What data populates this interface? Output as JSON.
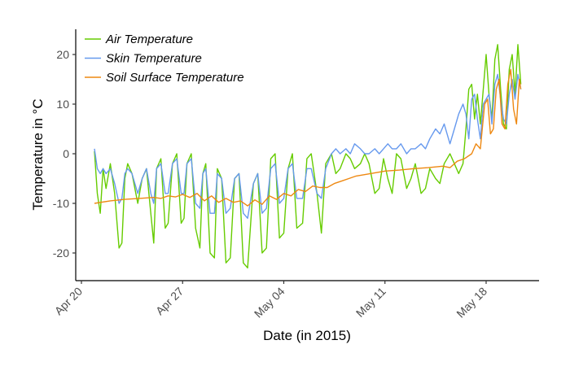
{
  "chart_data": {
    "type": "line",
    "title": "",
    "xlabel": "Date (in 2015)",
    "ylabel": "Temperature  in °C",
    "grid": false,
    "legend_position": "top-left",
    "x_unit": "days since Apr 20, 2015",
    "xlim": [
      -0.5,
      40.5
    ],
    "ylim": [
      -26,
      25
    ],
    "x_ticks": [
      {
        "value": 0,
        "label": "Apr 20"
      },
      {
        "value": 7,
        "label": "Apr 27"
      },
      {
        "value": 14,
        "label": "May 04"
      },
      {
        "value": 21,
        "label": "May 11"
      },
      {
        "value": 28,
        "label": "May 18"
      }
    ],
    "y_ticks": [
      {
        "value": -20,
        "label": "-20"
      },
      {
        "value": -10,
        "label": "-10"
      },
      {
        "value": 0,
        "label": "0"
      },
      {
        "value": 10,
        "label": "10"
      },
      {
        "value": 20,
        "label": "20"
      }
    ],
    "series": [
      {
        "name": "Air Temperature",
        "color": "#66cc00",
        "x": [
          0.9,
          1.1,
          1.3,
          1.5,
          1.7,
          2.0,
          2.3,
          2.6,
          2.8,
          3.0,
          3.2,
          3.5,
          3.9,
          4.2,
          4.5,
          4.8,
          5.0,
          5.2,
          5.5,
          5.8,
          6.0,
          6.3,
          6.6,
          6.9,
          7.1,
          7.3,
          7.6,
          7.9,
          8.2,
          8.4,
          8.6,
          8.9,
          9.2,
          9.4,
          9.7,
          10.0,
          10.3,
          10.6,
          10.9,
          11.2,
          11.5,
          11.9,
          12.2,
          12.5,
          12.8,
          13.1,
          13.4,
          13.7,
          14.0,
          14.3,
          14.6,
          14.9,
          15.3,
          15.6,
          15.9,
          16.3,
          16.6,
          16.9,
          17.3,
          17.6,
          17.9,
          18.3,
          18.6,
          18.9,
          19.3,
          19.6,
          19.9,
          20.3,
          20.6,
          20.9,
          21.2,
          21.5,
          21.8,
          22.1,
          22.5,
          22.8,
          23.1,
          23.5,
          23.8,
          24.1,
          24.5,
          24.8,
          25.1,
          25.5,
          25.8,
          26.1,
          26.4,
          26.6,
          26.8,
          27.0,
          27.2,
          27.4,
          27.6,
          27.8,
          28.0,
          28.2,
          28.4,
          28.6,
          28.8,
          29.0,
          29.2,
          29.4,
          29.6,
          29.8,
          30.0,
          30.2,
          30.4
        ],
        "values": [
          0.5,
          -8,
          -12,
          -3,
          -7,
          -2,
          -8,
          -19,
          -18,
          -5,
          -2,
          -4,
          -10,
          -5,
          -3,
          -12,
          -18,
          -3,
          -1,
          -15,
          -14,
          -2,
          0,
          -14,
          -13,
          -2,
          0,
          -15,
          -19,
          -4,
          -2,
          -20,
          -21,
          -3,
          -5,
          -22,
          -21,
          -5,
          -4,
          -22,
          -23,
          -6,
          -4,
          -20,
          -19,
          -1,
          0,
          -17,
          -16,
          -3,
          0,
          -15,
          -14,
          -1,
          0,
          -8,
          -16,
          -2,
          0,
          -4,
          -3,
          0,
          -1,
          -3,
          -2,
          0,
          -2,
          -8,
          -7,
          -1,
          -5,
          -8,
          0,
          -1,
          -7,
          -5,
          -2,
          -8,
          -7,
          -3,
          -5,
          -6,
          -2,
          0,
          -2,
          -4,
          -2,
          5,
          13,
          14,
          7,
          12,
          6,
          13,
          20,
          12,
          7,
          19,
          22,
          13,
          6,
          5,
          17,
          20,
          12,
          22,
          14
        ]
      },
      {
        "name": "Skin Temperature",
        "color": "#6699ee",
        "x": [
          0.9,
          1.1,
          1.3,
          1.5,
          1.7,
          2.0,
          2.3,
          2.6,
          2.8,
          3.0,
          3.2,
          3.5,
          3.9,
          4.2,
          4.5,
          4.8,
          5.0,
          5.2,
          5.5,
          5.8,
          6.0,
          6.3,
          6.6,
          6.9,
          7.1,
          7.3,
          7.6,
          7.9,
          8.2,
          8.4,
          8.6,
          8.9,
          9.2,
          9.4,
          9.7,
          10.0,
          10.3,
          10.6,
          10.9,
          11.2,
          11.5,
          11.9,
          12.2,
          12.5,
          12.8,
          13.1,
          13.4,
          13.7,
          14.0,
          14.3,
          14.6,
          14.9,
          15.3,
          15.6,
          15.9,
          16.3,
          16.6,
          16.9,
          17.3,
          17.6,
          17.9,
          18.3,
          18.6,
          18.9,
          19.3,
          19.6,
          19.9,
          20.3,
          20.6,
          20.9,
          21.2,
          21.5,
          21.8,
          22.1,
          22.5,
          22.8,
          23.1,
          23.5,
          23.8,
          24.1,
          24.5,
          24.8,
          25.1,
          25.5,
          25.8,
          26.1,
          26.4,
          26.6,
          26.8,
          27.0,
          27.2,
          27.4,
          27.6,
          27.8,
          28.0,
          28.2,
          28.4,
          28.6,
          28.8,
          29.0,
          29.2,
          29.4,
          29.6,
          29.8,
          30.0,
          30.2,
          30.4
        ],
        "values": [
          1,
          -3,
          -4,
          -3,
          -4,
          -3,
          -6,
          -10,
          -9,
          -4,
          -3,
          -4,
          -8,
          -5,
          -3,
          -8,
          -10,
          -3,
          -2,
          -8,
          -8,
          -2,
          -1,
          -8,
          -8,
          -2,
          -1,
          -10,
          -11,
          -4,
          -3,
          -12,
          -12,
          -4,
          -5,
          -12,
          -11,
          -5,
          -4,
          -12,
          -13,
          -6,
          -4,
          -12,
          -11,
          -3,
          -2,
          -10,
          -9,
          -3,
          -2,
          -9,
          -9,
          -3,
          -3,
          -8,
          -9,
          -3,
          0,
          1,
          0,
          1,
          0,
          2,
          1,
          0,
          0,
          1,
          0,
          1,
          2,
          1,
          1,
          2,
          0,
          1,
          1,
          2,
          1,
          3,
          5,
          4,
          6,
          2,
          5,
          8,
          10,
          8,
          3,
          11,
          12,
          7,
          3,
          10,
          11,
          12,
          6,
          14,
          16,
          11,
          7,
          6,
          12,
          15,
          11,
          16,
          13
        ]
      },
      {
        "name": "Soil Surface Temperature",
        "color": "#ee8811",
        "x": [
          0.9,
          2.0,
          3.0,
          4.0,
          5.0,
          5.5,
          6.0,
          6.5,
          7.0,
          7.5,
          8.0,
          8.5,
          9.0,
          9.5,
          10.0,
          10.5,
          11.0,
          11.5,
          12.0,
          12.5,
          13.0,
          13.5,
          14.0,
          14.5,
          15.0,
          15.5,
          16.0,
          16.5,
          17.0,
          17.5,
          18.0,
          18.5,
          19.0,
          20.0,
          21.0,
          22.0,
          23.0,
          24.0,
          25.0,
          25.5,
          26.0,
          26.5,
          27.0,
          27.3,
          27.6,
          27.9,
          28.1,
          28.3,
          28.5,
          28.7,
          28.9,
          29.1,
          29.3,
          29.5,
          29.7,
          29.9,
          30.1,
          30.3,
          30.4
        ],
        "values": [
          -10,
          -9.5,
          -9.2,
          -9.0,
          -8.8,
          -9.0,
          -8.5,
          -8.7,
          -8.2,
          -8.8,
          -8.0,
          -9.5,
          -8.5,
          -9.8,
          -9.0,
          -9.8,
          -9.5,
          -10.5,
          -9.3,
          -10.2,
          -8.5,
          -9.2,
          -8.0,
          -8.5,
          -7.2,
          -7.6,
          -6.5,
          -6.8,
          -6.8,
          -6.0,
          -5.5,
          -5.0,
          -4.5,
          -4.0,
          -3.5,
          -3.3,
          -3.0,
          -2.8,
          -2.5,
          -2.8,
          -1.5,
          -1.0,
          0,
          2,
          1,
          10,
          11,
          4,
          5,
          13,
          15,
          6,
          5,
          14,
          17,
          9,
          6,
          15,
          13
        ]
      }
    ]
  }
}
